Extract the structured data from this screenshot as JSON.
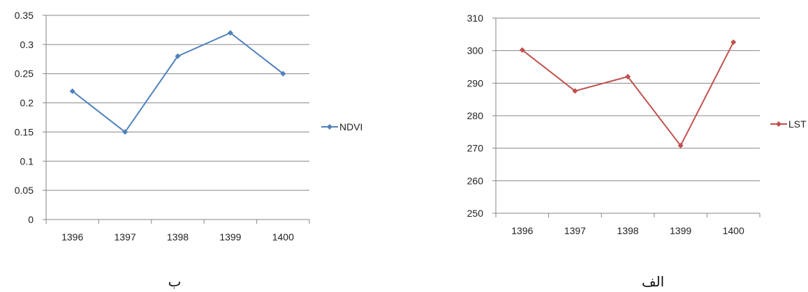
{
  "chart_data": [
    {
      "type": "line",
      "categories": [
        "1396",
        "1397",
        "1398",
        "1399",
        "1400"
      ],
      "series": [
        {
          "name": "NDVI",
          "values": [
            0.22,
            0.15,
            0.28,
            0.32,
            0.25
          ],
          "color": "#4f81bd"
        }
      ],
      "yticks": [
        "0",
        "0.05",
        "0.1",
        "0.15",
        "0.2",
        "0.25",
        "0.3",
        "0.35"
      ],
      "ylim": [
        0,
        0.35
      ],
      "grid": true,
      "legend_position": "right",
      "caption": "ب"
    },
    {
      "type": "line",
      "categories": [
        "1396",
        "1397",
        "1398",
        "1399",
        "1400"
      ],
      "series": [
        {
          "name": "LST",
          "values": [
            300.2,
            287.6,
            292.0,
            270.8,
            302.6
          ],
          "color": "#c0504d"
        }
      ],
      "yticks": [
        "250",
        "260",
        "270",
        "280",
        "290",
        "300",
        "310"
      ],
      "ylim": [
        250,
        310
      ],
      "grid": true,
      "legend_position": "right",
      "caption": "الف"
    }
  ]
}
